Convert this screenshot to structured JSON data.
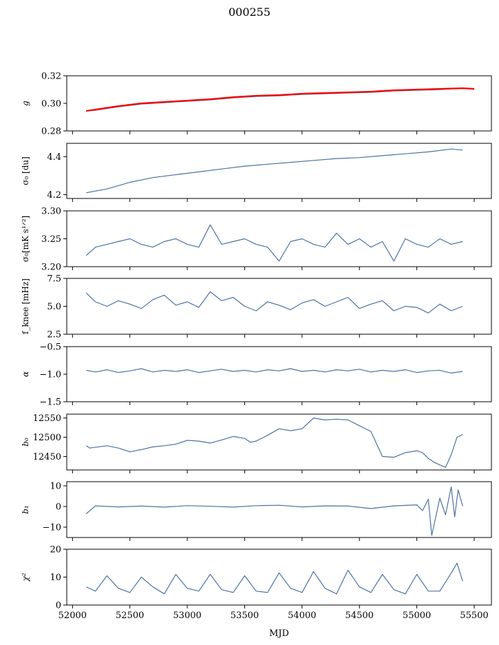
{
  "figure": {
    "title": "000255",
    "xlabel": "MJD"
  },
  "colors": {
    "series": "#4c72a0",
    "overlay": "#ff0000",
    "axes": "#000000"
  },
  "chart_data": [
    {
      "type": "line",
      "ylabel": "g",
      "ylabel_style": "italic",
      "ylim": [
        0.28,
        0.32
      ],
      "yticks": [
        0.28,
        0.3,
        0.32
      ],
      "ytick_labels": [
        "0.28",
        "0.30",
        "0.32"
      ],
      "xlim": [
        51950,
        55650
      ],
      "series": [
        {
          "color": "#4c72a0",
          "x": [
            52120,
            52200,
            52400,
            52600,
            52800,
            53000,
            53200,
            53400,
            53600,
            53800,
            54000,
            54200,
            54400,
            54600,
            54800,
            55000,
            55200,
            55400
          ],
          "y": [
            0.2945,
            0.295,
            0.2975,
            0.2995,
            0.3005,
            0.3015,
            0.3025,
            0.304,
            0.305,
            0.3055,
            0.3065,
            0.307,
            0.3075,
            0.308,
            0.309,
            0.3095,
            0.31,
            0.311
          ]
        },
        {
          "color": "#ff0000",
          "x": [
            52120,
            52200,
            52400,
            52600,
            52800,
            53000,
            53200,
            53400,
            53600,
            53800,
            54000,
            54200,
            54400,
            54600,
            54800,
            55000,
            55200,
            55400,
            55500
          ],
          "y": [
            0.2945,
            0.2955,
            0.298,
            0.3,
            0.301,
            0.302,
            0.303,
            0.3045,
            0.3055,
            0.306,
            0.307,
            0.3075,
            0.308,
            0.3085,
            0.3095,
            0.31,
            0.3105,
            0.311,
            0.3105
          ]
        }
      ]
    },
    {
      "type": "line",
      "ylabel": "σ₀ [du]",
      "ylim": [
        4.18,
        4.47
      ],
      "yticks": [
        4.2,
        4.4
      ],
      "ytick_labels": [
        "4.2",
        "4.4"
      ],
      "xlim": [
        51950,
        55650
      ],
      "series": [
        {
          "color": "#4c72a0",
          "x": [
            52120,
            52300,
            52500,
            52700,
            52900,
            53100,
            53300,
            53500,
            53700,
            53900,
            54100,
            54300,
            54500,
            54700,
            54900,
            55100,
            55300,
            55400
          ],
          "y": [
            4.21,
            4.23,
            4.265,
            4.29,
            4.305,
            4.32,
            4.335,
            4.35,
            4.36,
            4.37,
            4.38,
            4.39,
            4.395,
            4.405,
            4.415,
            4.425,
            4.44,
            4.435
          ]
        }
      ]
    },
    {
      "type": "line",
      "ylabel": "σ₀[mK s¹ᐟ²]",
      "ylim": [
        3.2,
        3.3
      ],
      "yticks": [
        3.2,
        3.25,
        3.3
      ],
      "ytick_labels": [
        "3.20",
        "3.25",
        "3.30"
      ],
      "xlim": [
        51950,
        55650
      ],
      "series": [
        {
          "color": "#4c72a0",
          "x": [
            52120,
            52200,
            52300,
            52400,
            52500,
            52600,
            52700,
            52800,
            52900,
            53000,
            53100,
            53200,
            53300,
            53400,
            53500,
            53600,
            53700,
            53800,
            53900,
            54000,
            54100,
            54200,
            54300,
            54400,
            54500,
            54600,
            54700,
            54800,
            54900,
            55000,
            55100,
            55200,
            55300,
            55400
          ],
          "y": [
            3.22,
            3.235,
            3.24,
            3.245,
            3.25,
            3.24,
            3.235,
            3.245,
            3.25,
            3.24,
            3.235,
            3.275,
            3.24,
            3.245,
            3.25,
            3.24,
            3.235,
            3.21,
            3.245,
            3.25,
            3.24,
            3.235,
            3.26,
            3.24,
            3.25,
            3.235,
            3.245,
            3.21,
            3.25,
            3.24,
            3.235,
            3.25,
            3.24,
            3.245
          ]
        }
      ]
    },
    {
      "type": "line",
      "ylabel": "f_knee [mHz]",
      "ylim": [
        2.5,
        7.5
      ],
      "yticks": [
        2.5,
        5.0,
        7.5
      ],
      "ytick_labels": [
        "2.5",
        "5.0",
        "7.5"
      ],
      "xlim": [
        51950,
        55650
      ],
      "series": [
        {
          "color": "#4c72a0",
          "x": [
            52120,
            52200,
            52300,
            52400,
            52500,
            52600,
            52700,
            52800,
            52900,
            53000,
            53100,
            53200,
            53300,
            53400,
            53500,
            53600,
            53700,
            53800,
            53900,
            54000,
            54100,
            54200,
            54300,
            54400,
            54500,
            54600,
            54700,
            54800,
            54900,
            55000,
            55100,
            55200,
            55300,
            55400
          ],
          "y": [
            6.2,
            5.4,
            5.0,
            5.5,
            5.2,
            4.8,
            5.6,
            6.0,
            5.1,
            5.4,
            4.9,
            6.3,
            5.5,
            5.8,
            5.0,
            4.6,
            5.4,
            5.1,
            4.7,
            5.3,
            5.6,
            5.0,
            5.4,
            5.8,
            4.8,
            5.2,
            5.5,
            4.6,
            5.0,
            4.9,
            4.4,
            5.2,
            4.6,
            5.0
          ]
        }
      ]
    },
    {
      "type": "line",
      "ylabel": "α",
      "ylabel_style": "italic",
      "ylim": [
        -1.5,
        -0.5
      ],
      "yticks": [
        -1.5,
        -1.0,
        -0.5
      ],
      "ytick_labels": [
        "−1.5",
        "−1.0",
        "−0.5"
      ],
      "xlim": [
        51950,
        55650
      ],
      "series": [
        {
          "color": "#4c72a0",
          "x": [
            52120,
            52200,
            52300,
            52400,
            52500,
            52600,
            52700,
            52800,
            52900,
            53000,
            53100,
            53200,
            53300,
            53400,
            53500,
            53600,
            53700,
            53800,
            53900,
            54000,
            54100,
            54200,
            54300,
            54400,
            54500,
            54600,
            54700,
            54800,
            54900,
            55000,
            55100,
            55200,
            55300,
            55400
          ],
          "y": [
            -0.93,
            -0.96,
            -0.92,
            -0.97,
            -0.94,
            -0.9,
            -0.96,
            -0.93,
            -0.95,
            -0.92,
            -0.97,
            -0.94,
            -0.91,
            -0.95,
            -0.93,
            -0.96,
            -0.92,
            -0.94,
            -0.9,
            -0.95,
            -0.93,
            -0.96,
            -0.92,
            -0.94,
            -0.91,
            -0.96,
            -0.93,
            -0.95,
            -0.92,
            -0.97,
            -0.94,
            -0.93,
            -0.98,
            -0.95
          ]
        }
      ]
    },
    {
      "type": "line",
      "ylabel": "b₀",
      "ylabel_style": "italic",
      "ylim": [
        12415,
        12560
      ],
      "yticks": [
        12450,
        12500,
        12550
      ],
      "ytick_labels": [
        "12450",
        "12500",
        "12550"
      ],
      "xlim": [
        51950,
        55650
      ],
      "series": [
        {
          "color": "#4c72a0",
          "x": [
            52120,
            52150,
            52300,
            52400,
            52500,
            52600,
            52700,
            52800,
            52900,
            53000,
            53100,
            53200,
            53300,
            53400,
            53500,
            53550,
            53600,
            53700,
            53800,
            53900,
            54000,
            54100,
            54200,
            54300,
            54400,
            54500,
            54600,
            54700,
            54800,
            54900,
            55000,
            55050,
            55100,
            55150,
            55200,
            55250,
            55300,
            55350,
            55400
          ],
          "y": [
            12478,
            12472,
            12478,
            12472,
            12462,
            12468,
            12475,
            12478,
            12482,
            12492,
            12490,
            12485,
            12493,
            12502,
            12497,
            12487,
            12490,
            12505,
            12522,
            12517,
            12522,
            12550,
            12545,
            12547,
            12545,
            12530,
            12515,
            12450,
            12448,
            12460,
            12465,
            12460,
            12445,
            12435,
            12428,
            12422,
            12455,
            12500,
            12507
          ]
        }
      ]
    },
    {
      "type": "line",
      "ylabel": "b₁",
      "ylabel_style": "italic",
      "ylim": [
        -15,
        12
      ],
      "yticks": [
        -10,
        0,
        10
      ],
      "ytick_labels": [
        "−10",
        "0",
        "10"
      ],
      "xlim": [
        51950,
        55650
      ],
      "series": [
        {
          "color": "#4c72a0",
          "x": [
            52120,
            52200,
            52400,
            52600,
            52800,
            53000,
            53200,
            53400,
            53600,
            53800,
            54000,
            54200,
            54400,
            54600,
            54800,
            55000,
            55050,
            55100,
            55130,
            55200,
            55250,
            55300,
            55330,
            55360,
            55400
          ],
          "y": [
            -3.5,
            0.3,
            -0.2,
            0.2,
            -0.3,
            0.4,
            0.1,
            -0.3,
            0.4,
            0.6,
            -0.2,
            0.3,
            0.2,
            -1.0,
            0.3,
            0.8,
            -2.0,
            3.5,
            -14.0,
            4.0,
            -4.0,
            9.5,
            -5.0,
            8.0,
            0.2
          ]
        }
      ]
    },
    {
      "type": "line",
      "ylabel": "χ²",
      "ylabel_style": "italic",
      "ylim": [
        0,
        20
      ],
      "yticks": [
        0,
        10,
        20
      ],
      "ytick_labels": [
        "0",
        "10",
        "20"
      ],
      "xlim": [
        51950,
        55650
      ],
      "xticks": [
        52000,
        52500,
        53000,
        53500,
        54000,
        54500,
        55000,
        55500
      ],
      "xtick_labels": [
        "52000",
        "52500",
        "53000",
        "53500",
        "54000",
        "54500",
        "55000",
        "55500"
      ],
      "series": [
        {
          "color": "#4c72a0",
          "x": [
            52120,
            52200,
            52300,
            52400,
            52500,
            52600,
            52700,
            52800,
            52900,
            53000,
            53100,
            53200,
            53300,
            53400,
            53500,
            53600,
            53700,
            53800,
            53900,
            54000,
            54100,
            54200,
            54300,
            54400,
            54500,
            54600,
            54700,
            54800,
            54900,
            55000,
            55100,
            55200,
            55300,
            55350,
            55400
          ],
          "y": [
            6.5,
            5.0,
            10.5,
            6.0,
            4.5,
            10.0,
            6.5,
            4.0,
            11.0,
            6.0,
            5.0,
            11.0,
            5.5,
            4.5,
            10.5,
            5.0,
            4.5,
            11.5,
            6.0,
            4.5,
            12.0,
            6.0,
            4.0,
            12.5,
            6.5,
            4.5,
            11.0,
            5.5,
            4.0,
            11.0,
            5.0,
            5.0,
            11.5,
            15.0,
            8.5
          ]
        }
      ]
    }
  ]
}
